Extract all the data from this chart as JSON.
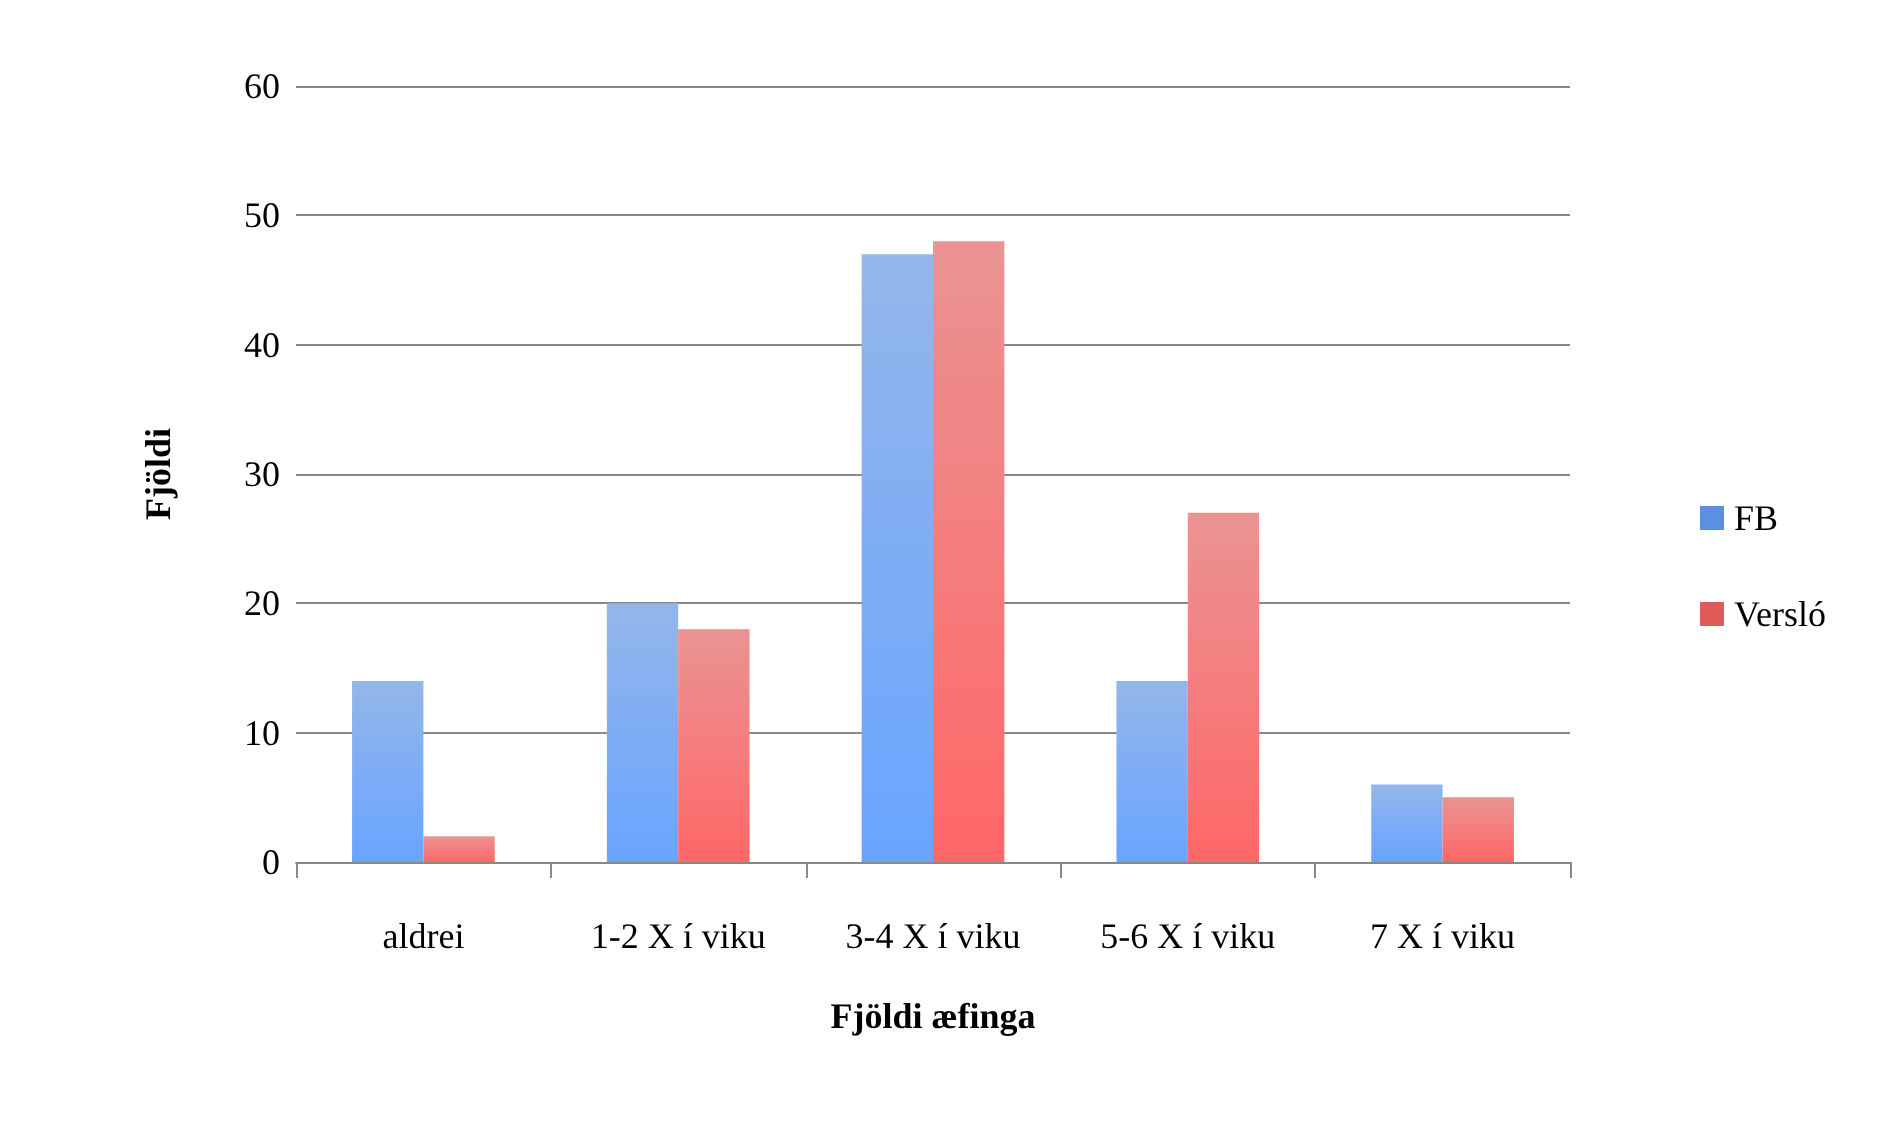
{
  "chart_data": {
    "type": "bar",
    "xlabel": "Fjöldi æfinga",
    "ylabel": "Fjöldi",
    "categories": [
      "aldrei",
      "1-2 X í viku",
      "3-4 X í viku",
      "5-6 X í viku",
      "7 X í viku"
    ],
    "series": [
      {
        "name": "FB",
        "color": "#5b8fe0",
        "values": [
          14,
          20,
          47,
          14,
          6
        ]
      },
      {
        "name": "Versló",
        "color": "#e05a5a",
        "values": [
          2,
          18,
          48,
          27,
          5
        ]
      }
    ],
    "ylim": [
      0,
      60
    ],
    "yticks": [
      0,
      10,
      20,
      30,
      40,
      50,
      60
    ],
    "grid": "y",
    "legend": "right"
  }
}
